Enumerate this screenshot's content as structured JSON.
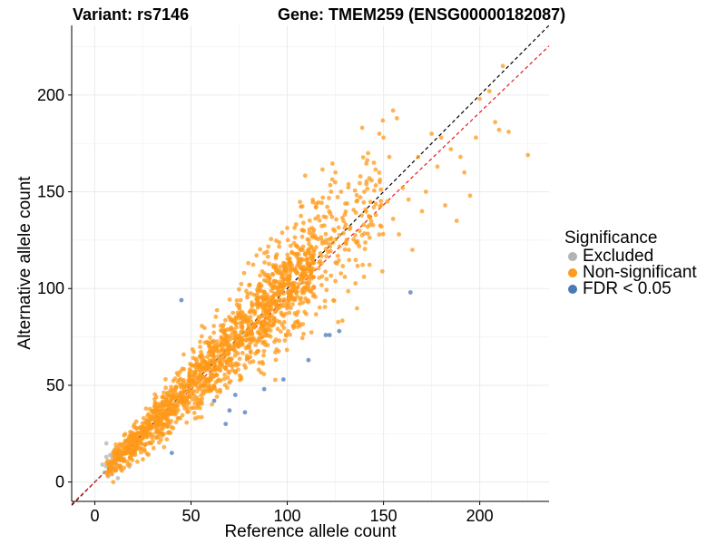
{
  "header": {
    "variant_title": "Variant: rs7146",
    "gene_title": "Gene: TMEM259 (ENSG00000182087)"
  },
  "chart_data": {
    "type": "scatter",
    "xlabel": "Reference allele count",
    "ylabel": "Alternative allele count",
    "xlim": [
      -12,
      236
    ],
    "ylim": [
      -10,
      236
    ],
    "xticks": [
      0,
      50,
      100,
      150,
      200
    ],
    "yticks": [
      0,
      50,
      100,
      150,
      200
    ],
    "grid": true,
    "legend": {
      "title": "Significance",
      "position": "right",
      "entries": [
        {
          "label": "Excluded",
          "color": "#b3b3b3"
        },
        {
          "label": "Non-significant",
          "color": "#ff9a1a"
        },
        {
          "label": "FDR < 0.05",
          "color": "#4a7ab5"
        }
      ]
    },
    "reference_lines": [
      {
        "name": "y = x",
        "style": "dashed",
        "color": "#000000",
        "slope": 1,
        "intercept": 0
      },
      {
        "name": "fit",
        "style": "dashed",
        "color": "#e41a1c",
        "slope": 0.955,
        "intercept": 0
      }
    ],
    "series": [
      {
        "name": "Excluded",
        "color": "#b3b3b3",
        "points": [
          [
            5,
            5
          ],
          [
            6,
            8
          ],
          [
            7,
            10
          ],
          [
            8,
            6
          ],
          [
            9,
            12
          ],
          [
            10,
            8
          ],
          [
            11,
            10
          ],
          [
            7,
            3
          ],
          [
            12,
            2
          ],
          [
            6,
            20
          ],
          [
            8,
            14
          ],
          [
            10,
            16
          ],
          [
            12,
            12
          ],
          [
            13,
            8
          ],
          [
            18,
            8
          ],
          [
            11,
            6
          ],
          [
            9,
            4
          ],
          [
            14,
            14
          ],
          [
            6,
            13
          ],
          [
            4,
            9
          ]
        ]
      },
      {
        "name": "Non-significant",
        "color": "#ff9a1a",
        "cloud": {
          "seed": 7146,
          "n": 1750,
          "x_range": [
            6,
            150
          ],
          "slope": 1.0,
          "rel_spread": 0.12
        },
        "points": [
          [
            155,
            192
          ],
          [
            157,
            188
          ],
          [
            153,
            168
          ],
          [
            160,
            152
          ],
          [
            155,
            136
          ],
          [
            158,
            128
          ],
          [
            165,
            120
          ],
          [
            172,
            150
          ],
          [
            180,
            178
          ],
          [
            185,
            172
          ],
          [
            190,
            168
          ],
          [
            192,
            160
          ],
          [
            195,
            148
          ],
          [
            182,
            143
          ],
          [
            188,
            135
          ],
          [
            205,
            202
          ],
          [
            212,
            215
          ],
          [
            210,
            182
          ],
          [
            215,
            181
          ],
          [
            208,
            186
          ],
          [
            225,
            169
          ],
          [
            200,
            198
          ],
          [
            178,
            163
          ],
          [
            168,
            168
          ],
          [
            198,
            178
          ],
          [
            170,
            140
          ],
          [
            163,
            146
          ],
          [
            175,
            180
          ],
          [
            148,
            155
          ],
          [
            152,
            145
          ],
          [
            145,
            165
          ],
          [
            150,
            178
          ],
          [
            140,
            150
          ],
          [
            146,
            138
          ],
          [
            142,
            170
          ],
          [
            138,
            158
          ],
          [
            132,
            120
          ],
          [
            136,
            145
          ],
          [
            128,
            150
          ],
          [
            125,
            160
          ]
        ]
      },
      {
        "name": "FDR < 0.05",
        "color": "#4a7ab5",
        "points": [
          [
            45,
            94
          ],
          [
            164,
            98
          ],
          [
            127,
            78
          ],
          [
            120,
            76
          ],
          [
            122,
            76
          ],
          [
            111,
            63
          ],
          [
            98,
            53
          ],
          [
            88,
            48
          ],
          [
            73,
            45
          ],
          [
            62,
            42
          ],
          [
            70,
            37
          ],
          [
            68,
            30
          ],
          [
            78,
            36
          ],
          [
            40,
            15
          ]
        ]
      }
    ]
  }
}
